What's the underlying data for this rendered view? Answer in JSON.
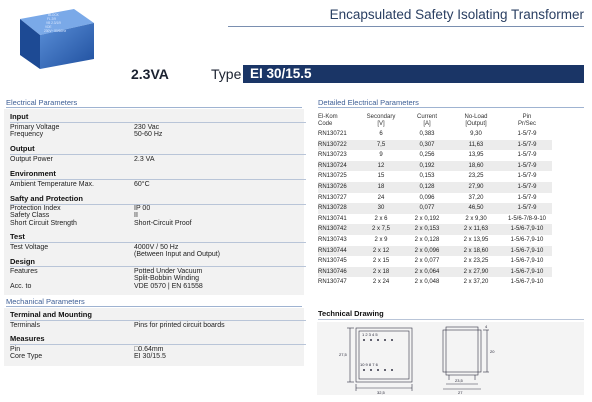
{
  "header": {
    "title": "Encapsulated Safety Isolating Transformer",
    "rating": "2.3VA",
    "type_label": "Type",
    "type_value": "EI 30/15.5"
  },
  "product_image": {
    "label_lines": [
      "BLOCK",
      "FL 2/9",
      "VB 2.3/1/9",
      "VDE",
      "230V~ 50/60Hz"
    ]
  },
  "electrical": {
    "heading": "Electrical Parameters",
    "groups": [
      {
        "name": "Input",
        "rows": [
          {
            "label": "Primary Voltage",
            "value": "230 Vac"
          },
          {
            "label": "Frequency",
            "value": "50-60 Hz"
          }
        ]
      },
      {
        "name": "Output",
        "rows": [
          {
            "label": "Output Power",
            "value": "2.3 VA"
          }
        ]
      },
      {
        "name": "Environment",
        "rows": [
          {
            "label": "Ambient Temperature Max.",
            "value": "60°C"
          }
        ]
      },
      {
        "name": "Safty and Protection",
        "rows": [
          {
            "label": "Protection Index",
            "value": "IP 00"
          },
          {
            "label": "Safety Class",
            "value": "II"
          },
          {
            "label": "Short Circuit Strength",
            "value": "Short-Circuit Proof"
          }
        ]
      },
      {
        "name": "Test",
        "rows": [
          {
            "label": "Test Voltage",
            "value": "4000V / 50 Hz"
          },
          {
            "label": "",
            "value": "(Between Input and Output)"
          }
        ]
      },
      {
        "name": "Design",
        "rows": [
          {
            "label": "Features",
            "value": "Potted Under Vacuum"
          },
          {
            "label": "",
            "value": "Split-Bobbin Winding"
          },
          {
            "label": "Acc. to",
            "value": "VDE 0570 | EN 61558"
          }
        ]
      }
    ]
  },
  "mechanical": {
    "heading": "Mechanical Parameters",
    "groups": [
      {
        "name": "Terminal and Mounting",
        "rows": [
          {
            "label": "Terminals",
            "value": "Pins for printed circuit boards"
          }
        ]
      },
      {
        "name": "Measures",
        "rows": [
          {
            "label": "Pin",
            "value": "□0.64mm"
          },
          {
            "label": "Core Type",
            "value": "EI 30/15.5"
          }
        ]
      }
    ]
  },
  "detailed": {
    "heading": "Detailed Electrical Parameters",
    "columns": [
      {
        "l1": "El-Kom",
        "l2": "Code"
      },
      {
        "l1": "Secondary",
        "l2": "[V]"
      },
      {
        "l1": "Current",
        "l2": "[A]"
      },
      {
        "l1": "No-Load",
        "l2": "[Output]"
      },
      {
        "l1": "Pin",
        "l2": "Pr/Sec"
      }
    ],
    "rows": [
      [
        "RN130721",
        "6",
        "0,383",
        "9,30",
        "1-5/7-9"
      ],
      [
        "RN130722",
        "7,5",
        "0,307",
        "11,63",
        "1-5/7-9"
      ],
      [
        "RN130723",
        "9",
        "0,256",
        "13,95",
        "1-5/7-9"
      ],
      [
        "RN130724",
        "12",
        "0,192",
        "18,60",
        "1-5/7-9"
      ],
      [
        "RN130725",
        "15",
        "0,153",
        "23,25",
        "1-5/7-9"
      ],
      [
        "RN130726",
        "18",
        "0,128",
        "27,90",
        "1-5/7-9"
      ],
      [
        "RN130727",
        "24",
        "0,096",
        "37,20",
        "1-5/7-9"
      ],
      [
        "RN130728",
        "30",
        "0,077",
        "46,50",
        "1-5/7-9"
      ],
      [
        "RN130741",
        "2 x 6",
        "2 x 0,192",
        "2 x 9,30",
        "1-5/6-7/8-9-10"
      ],
      [
        "RN130742",
        "2 x 7,5",
        "2 x 0,153",
        "2 x 11,63",
        "1-5/6-7,9-10"
      ],
      [
        "RN130743",
        "2 x 9",
        "2 x 0,128",
        "2 x 13,95",
        "1-5/6-7,9-10"
      ],
      [
        "RN130744",
        "2 x 12",
        "2 x 0,096",
        "2 x 18,60",
        "1-5/6-7,9-10"
      ],
      [
        "RN130745",
        "2 x 15",
        "2 x 0,077",
        "2 x 23,25",
        "1-5/6-7,9-10"
      ],
      [
        "RN130746",
        "2 x 18",
        "2 x 0,064",
        "2 x 27,90",
        "1-5/6-7,9-10"
      ],
      [
        "RN130747",
        "2 x 24",
        "2 x 0,048",
        "2 x 37,20",
        "1-5/6-7,9-10"
      ]
    ]
  },
  "technical_drawing": {
    "heading": "Technical Drawing",
    "pin_numbers_top": "1 2 3 4 5",
    "pin_numbers_bottom": "10 9 8 7 6",
    "dim_height": "27,5",
    "dim_width": "32,5",
    "dim_side_width": "23,5",
    "dim_side_depth": "27",
    "dim_side_height": "20",
    "dim_pin": "4"
  }
}
